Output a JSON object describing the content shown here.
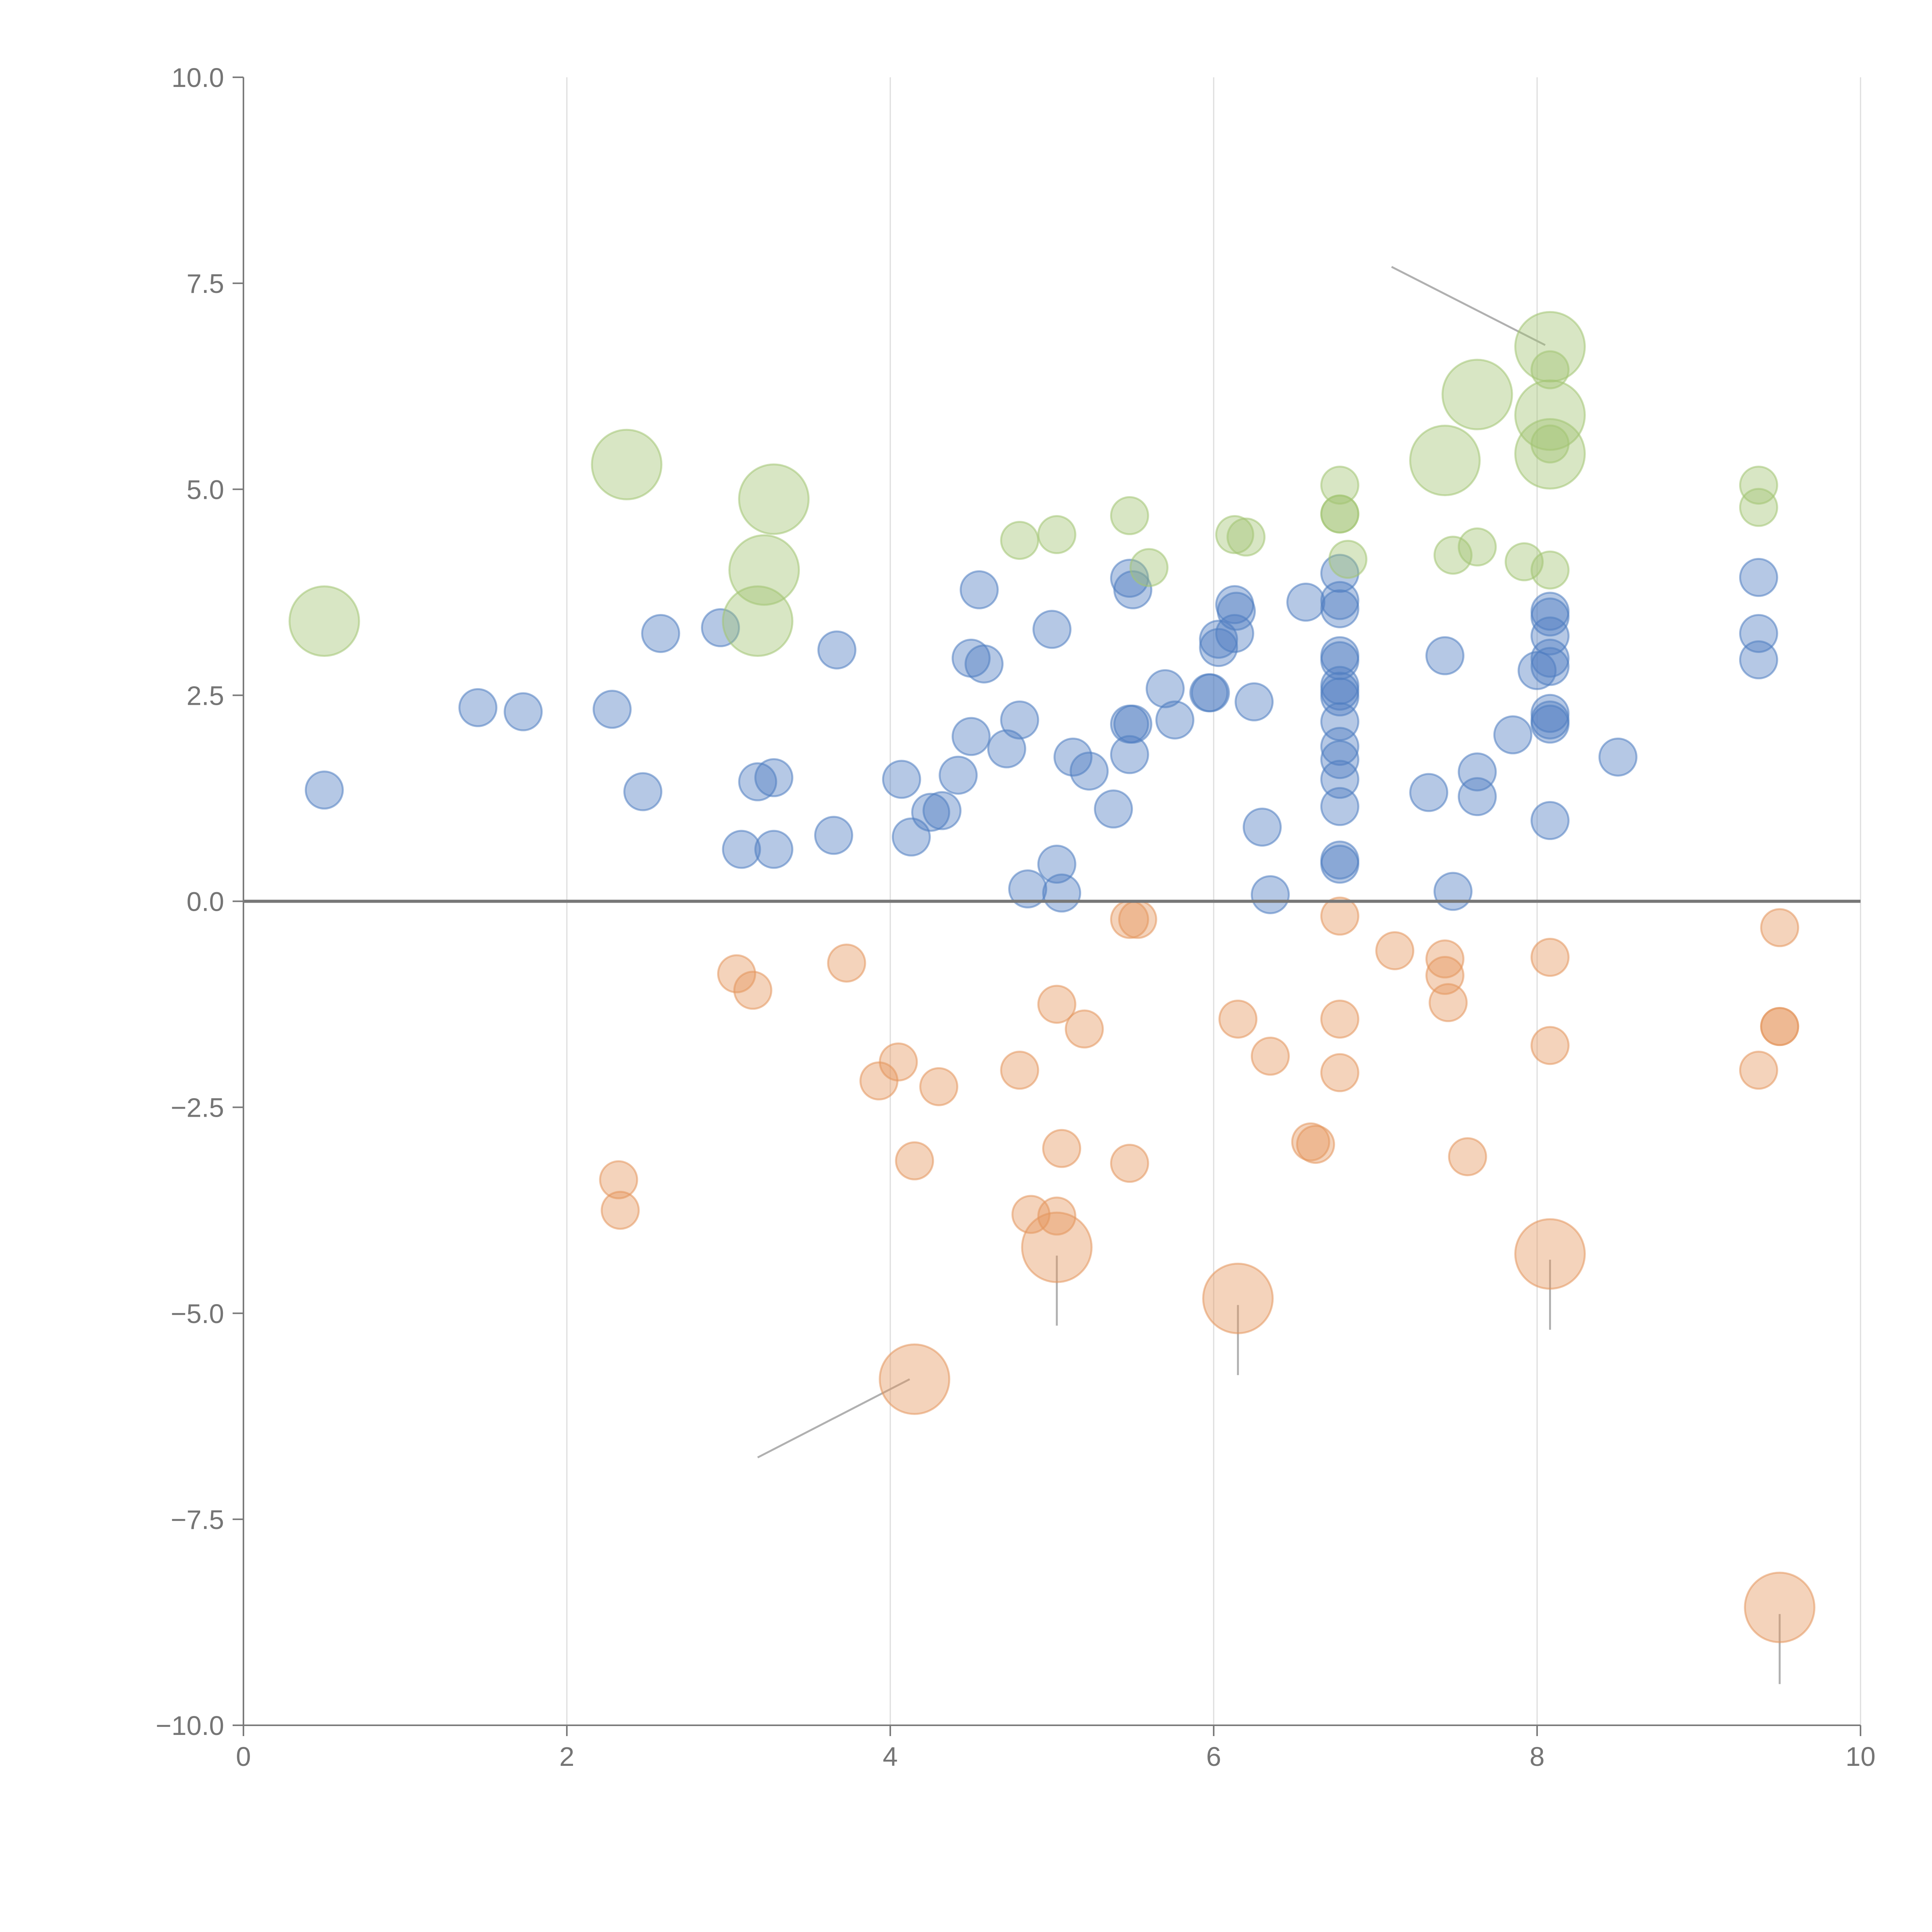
{
  "chart_data": {
    "type": "scatter",
    "title": "",
    "xlabel": "",
    "ylabel": "",
    "xlim": [
      0,
      10
    ],
    "ylim": [
      -10,
      10
    ],
    "grid": "vertical gridlines at x ticks",
    "zero_line": true,
    "x_ticks": [
      0,
      2,
      4,
      6,
      8,
      10
    ],
    "x_tick_labels": [
      "0",
      "2",
      "4",
      "6",
      "8",
      "10"
    ],
    "y_ticks": [
      10,
      7.5,
      5,
      2.5,
      0,
      -2.5,
      -5,
      -7.5,
      -10
    ],
    "y_tick_labels": [
      "10.0",
      "7.5",
      "5.0",
      "2.5",
      "0.0",
      "−2.5",
      "−5.0",
      "−7.5",
      "−10.0"
    ],
    "size_scale": {
      "small": 1,
      "large": 2.2
    },
    "annotation_lines": [
      {
        "from": [
          7.1,
          7.7
        ],
        "to": [
          8.05,
          6.75
        ]
      },
      {
        "from": [
          3.18,
          -6.75
        ],
        "to": [
          4.12,
          -5.8
        ]
      },
      {
        "from": [
          5.03,
          -4.3
        ],
        "to": [
          5.03,
          -5.15
        ]
      },
      {
        "from": [
          6.15,
          -4.9
        ],
        "to": [
          6.15,
          -5.75
        ]
      },
      {
        "from": [
          8.08,
          -4.35
        ],
        "to": [
          8.08,
          -5.2
        ]
      },
      {
        "from": [
          9.5,
          -8.65
        ],
        "to": [
          9.5,
          -9.5
        ]
      }
    ],
    "series": [
      {
        "name": "blue",
        "color": "#4f7dc1",
        "points": [
          [
            0.5,
            1.35,
            1
          ],
          [
            1.45,
            2.35,
            1
          ],
          [
            1.73,
            2.3,
            1
          ],
          [
            2.28,
            2.33,
            1
          ],
          [
            2.47,
            1.33,
            1
          ],
          [
            2.58,
            3.25,
            1
          ],
          [
            2.95,
            3.32,
            1
          ],
          [
            3.08,
            0.63,
            1
          ],
          [
            3.18,
            1.45,
            1
          ],
          [
            3.28,
            1.5,
            1
          ],
          [
            3.28,
            0.63,
            1
          ],
          [
            3.65,
            0.8,
            1
          ],
          [
            3.67,
            3.05,
            1
          ],
          [
            4.07,
            1.48,
            1
          ],
          [
            4.13,
            0.78,
            1
          ],
          [
            4.25,
            1.08,
            1
          ],
          [
            4.32,
            1.1,
            1
          ],
          [
            4.42,
            1.53,
            1
          ],
          [
            4.5,
            2.95,
            1
          ],
          [
            4.5,
            2.0,
            1
          ],
          [
            4.55,
            3.78,
            1
          ],
          [
            4.58,
            2.88,
            1
          ],
          [
            4.72,
            1.85,
            1
          ],
          [
            4.8,
            2.2,
            1
          ],
          [
            4.85,
            0.15,
            1
          ],
          [
            5.0,
            3.3,
            1
          ],
          [
            5.03,
            0.45,
            1
          ],
          [
            5.06,
            0.1,
            1
          ],
          [
            5.13,
            1.75,
            1
          ],
          [
            5.23,
            1.58,
            1
          ],
          [
            5.38,
            1.12,
            1
          ],
          [
            5.48,
            3.92,
            1
          ],
          [
            5.5,
            3.78,
            1
          ],
          [
            5.48,
            2.15,
            1
          ],
          [
            5.5,
            2.15,
            1
          ],
          [
            5.48,
            1.78,
            1
          ],
          [
            5.7,
            2.58,
            1
          ],
          [
            5.76,
            2.2,
            1
          ],
          [
            5.97,
            2.53,
            1
          ],
          [
            5.98,
            2.53,
            1
          ],
          [
            6.03,
            3.18,
            1
          ],
          [
            6.03,
            3.08,
            1
          ],
          [
            6.13,
            3.6,
            1
          ],
          [
            6.13,
            3.25,
            1
          ],
          [
            6.14,
            3.52,
            1
          ],
          [
            6.25,
            2.42,
            1
          ],
          [
            6.3,
            0.9,
            1
          ],
          [
            6.35,
            0.08,
            1
          ],
          [
            6.57,
            3.63,
            1
          ],
          [
            6.78,
            3.98,
            1
          ],
          [
            6.78,
            3.65,
            1
          ],
          [
            6.78,
            3.55,
            1
          ],
          [
            6.78,
            2.98,
            1
          ],
          [
            6.78,
            2.92,
            1
          ],
          [
            6.78,
            2.62,
            1
          ],
          [
            6.78,
            2.55,
            1
          ],
          [
            6.78,
            2.48,
            1
          ],
          [
            6.78,
            2.18,
            1
          ],
          [
            6.78,
            1.88,
            1
          ],
          [
            6.78,
            1.72,
            1
          ],
          [
            6.78,
            1.48,
            1
          ],
          [
            6.78,
            1.15,
            1
          ],
          [
            6.78,
            0.5,
            1
          ],
          [
            6.78,
            0.45,
            1
          ],
          [
            7.33,
            1.32,
            1
          ],
          [
            7.43,
            2.98,
            1
          ],
          [
            7.48,
            0.12,
            1
          ],
          [
            7.63,
            1.57,
            1
          ],
          [
            7.63,
            1.27,
            1
          ],
          [
            7.85,
            2.02,
            1
          ],
          [
            8.0,
            2.8,
            1
          ],
          [
            8.08,
            3.52,
            1
          ],
          [
            8.08,
            3.45,
            1
          ],
          [
            8.08,
            3.22,
            1
          ],
          [
            8.08,
            2.95,
            1
          ],
          [
            8.08,
            2.85,
            1
          ],
          [
            8.08,
            2.28,
            1
          ],
          [
            8.08,
            2.2,
            1
          ],
          [
            8.08,
            2.15,
            1
          ],
          [
            8.08,
            0.98,
            1
          ],
          [
            8.5,
            1.75,
            1
          ],
          [
            9.37,
            3.93,
            1
          ],
          [
            9.37,
            3.25,
            1
          ],
          [
            9.37,
            2.93,
            1
          ]
        ]
      },
      {
        "name": "green",
        "color": "#a2c473",
        "points": [
          [
            0.5,
            3.4,
            2
          ],
          [
            2.37,
            5.3,
            2
          ],
          [
            3.18,
            3.4,
            2
          ],
          [
            3.22,
            4.02,
            2
          ],
          [
            3.28,
            4.88,
            2
          ],
          [
            4.8,
            4.38,
            1
          ],
          [
            5.03,
            4.45,
            1
          ],
          [
            5.48,
            4.68,
            1
          ],
          [
            5.6,
            4.05,
            1
          ],
          [
            6.13,
            4.45,
            1
          ],
          [
            6.2,
            4.42,
            1
          ],
          [
            6.78,
            5.05,
            1
          ],
          [
            6.78,
            4.7,
            1
          ],
          [
            6.78,
            4.7,
            1
          ],
          [
            6.83,
            4.15,
            1
          ],
          [
            7.43,
            5.35,
            2
          ],
          [
            7.48,
            4.2,
            1
          ],
          [
            7.63,
            6.15,
            2
          ],
          [
            7.63,
            4.3,
            1
          ],
          [
            7.92,
            4.12,
            1
          ],
          [
            8.08,
            6.73,
            2
          ],
          [
            8.08,
            6.45,
            1
          ],
          [
            8.08,
            5.9,
            2
          ],
          [
            8.08,
            5.55,
            1
          ],
          [
            8.08,
            5.43,
            2
          ],
          [
            8.08,
            4.02,
            1
          ],
          [
            9.37,
            5.05,
            1
          ],
          [
            9.37,
            4.78,
            1
          ]
        ]
      },
      {
        "name": "orange",
        "color": "#e4965c",
        "points": [
          [
            2.32,
            -3.38,
            1
          ],
          [
            2.33,
            -3.75,
            1
          ],
          [
            3.05,
            -0.88,
            1
          ],
          [
            3.15,
            -1.08,
            1
          ],
          [
            3.73,
            -0.75,
            1
          ],
          [
            3.93,
            -2.18,
            1
          ],
          [
            4.05,
            -1.95,
            1
          ],
          [
            4.15,
            -3.15,
            1
          ],
          [
            4.15,
            -5.8,
            2
          ],
          [
            4.3,
            -2.25,
            1
          ],
          [
            4.8,
            -2.05,
            1
          ],
          [
            4.87,
            -3.8,
            1
          ],
          [
            5.03,
            -1.25,
            1
          ],
          [
            5.03,
            -3.82,
            1
          ],
          [
            5.03,
            -4.2,
            2
          ],
          [
            5.06,
            -3.0,
            1
          ],
          [
            5.2,
            -1.55,
            1
          ],
          [
            5.48,
            -0.22,
            1
          ],
          [
            5.53,
            -0.22,
            1
          ],
          [
            5.48,
            -3.18,
            1
          ],
          [
            6.15,
            -1.43,
            1
          ],
          [
            6.15,
            -4.82,
            2
          ],
          [
            6.35,
            -1.88,
            1
          ],
          [
            6.6,
            -2.92,
            1
          ],
          [
            6.63,
            -2.95,
            1
          ],
          [
            6.78,
            -0.18,
            1
          ],
          [
            6.78,
            -1.43,
            1
          ],
          [
            6.78,
            -2.08,
            1
          ],
          [
            7.12,
            -0.6,
            1
          ],
          [
            7.43,
            -0.7,
            1
          ],
          [
            7.43,
            -0.9,
            1
          ],
          [
            7.45,
            -1.23,
            1
          ],
          [
            7.57,
            -3.1,
            1
          ],
          [
            8.08,
            -0.68,
            1
          ],
          [
            8.08,
            -1.75,
            1
          ],
          [
            8.08,
            -4.28,
            2
          ],
          [
            9.37,
            -2.05,
            1
          ],
          [
            9.5,
            -0.32,
            1
          ],
          [
            9.5,
            -1.52,
            1
          ],
          [
            9.5,
            -1.52,
            1
          ],
          [
            9.5,
            -8.57,
            2
          ]
        ]
      }
    ]
  }
}
